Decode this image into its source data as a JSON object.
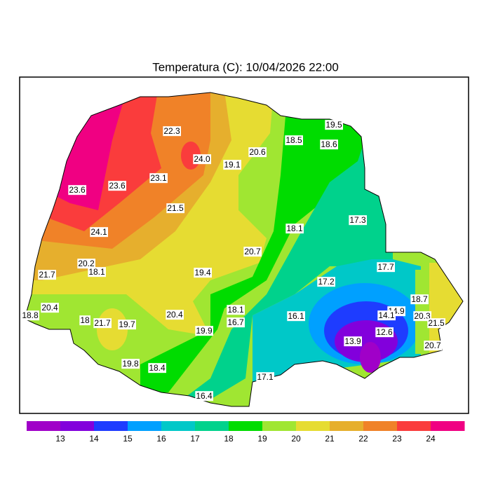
{
  "title": "Temperatura (C): 10/04/2026 22:00",
  "stations": [
    "22.3",
    "24.0",
    "20.6",
    "19.1",
    "18.5",
    "18.6",
    "19.5",
    "23.1",
    "23.6",
    "23.6",
    "21.5",
    "24.1",
    "18.1",
    "17.3",
    "20.7",
    "20.2",
    "18.1",
    "21.7",
    "19.4",
    "17.7",
    "17.2",
    "18.7",
    "20.4",
    "18.8",
    "18.1",
    "20.4",
    "16.1",
    "14.9",
    "14.1",
    "20.3",
    "21.5",
    "18",
    "21.7",
    "19.7",
    "16.7",
    "19.9",
    "12.6",
    "13.9",
    "20.7",
    "19.8",
    "18.4",
    "17.1",
    "16.4"
  ],
  "colorbar": {
    "colors": [
      "#a000c8",
      "#8200dc",
      "#1e3cff",
      "#00a0ff",
      "#00c8c8",
      "#00d28c",
      "#00dc00",
      "#a0e632",
      "#e6dc32",
      "#e6af2d",
      "#f08228",
      "#fa3c3c",
      "#f00082"
    ],
    "ticks": [
      13,
      14,
      15,
      16,
      17,
      18,
      19,
      20,
      21,
      22,
      23,
      24
    ]
  }
}
